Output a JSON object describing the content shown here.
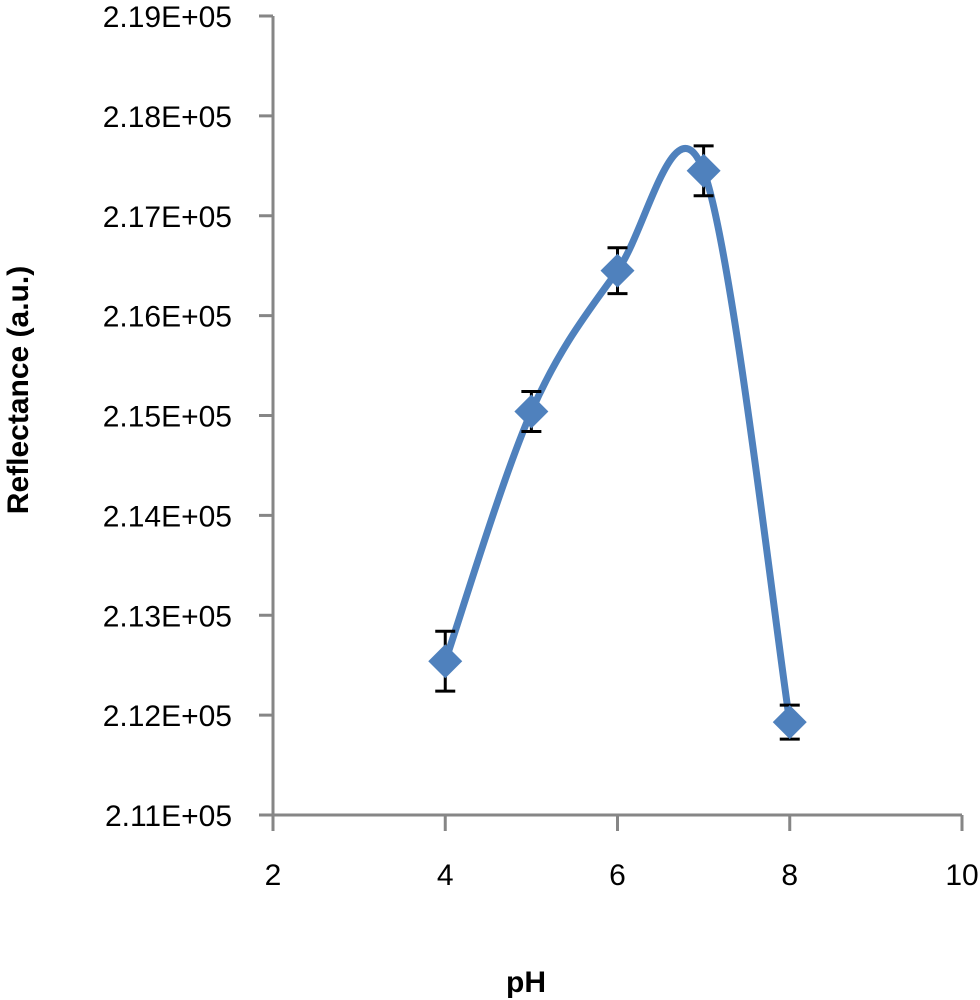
{
  "chart_data": {
    "type": "scatter",
    "xlabel": "pH",
    "ylabel": "Reflectance (a.u.)",
    "xlim": [
      2,
      10
    ],
    "ylim": [
      211000,
      219000
    ],
    "x_ticks": [
      "2",
      "4",
      "6",
      "8",
      "10"
    ],
    "y_ticks": [
      "2.11E+05",
      "2.12E+05",
      "2.13E+05",
      "2.14E+05",
      "2.15E+05",
      "2.16E+05",
      "2.17E+05",
      "2.18E+05",
      "2.19E+05"
    ],
    "grid": false,
    "smoothed_line": true,
    "error_bars": true,
    "series": [
      {
        "marker": "diamond",
        "color": "#4F81BD",
        "x": [
          4,
          5,
          6,
          7,
          8
        ],
        "y": [
          212540,
          215040,
          216450,
          217450,
          211930
        ],
        "error": [
          300,
          200,
          230,
          250,
          170
        ]
      }
    ]
  }
}
